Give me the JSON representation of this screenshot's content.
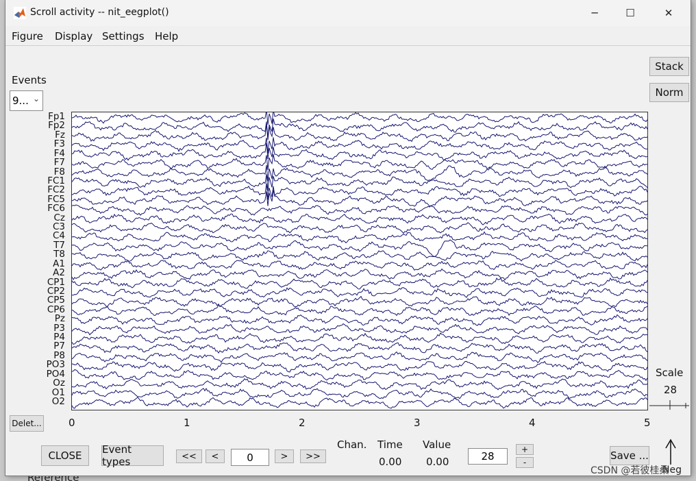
{
  "window": {
    "title": "Scroll activity -- nit_eegplot()",
    "controls": [
      "─",
      "☐",
      "✕"
    ]
  },
  "menu": [
    "Figure",
    "Display",
    "Settings",
    "Help"
  ],
  "events": {
    "label": "Events",
    "selected": "9..."
  },
  "side_buttons": {
    "stack": "Stack",
    "norm": "Norm"
  },
  "channels": [
    "Fp1",
    "Fp2",
    "Fz",
    "F3",
    "F4",
    "F7",
    "F8",
    "FC1",
    "FC2",
    "FC5",
    "FC6",
    "Cz",
    "C3",
    "C4",
    "T7",
    "T8",
    "A1",
    "A2",
    "CP1",
    "CP2",
    "CP5",
    "CP6",
    "Pz",
    "P3",
    "P4",
    "P7",
    "P8",
    "PO3",
    "PO4",
    "Oz",
    "O1",
    "O2"
  ],
  "x_ticks": [
    "0",
    "1",
    "2",
    "3",
    "4",
    "5"
  ],
  "scale": {
    "label": "Scale",
    "value": "28"
  },
  "bottom": {
    "delete": "Delet...",
    "close": "CLOSE",
    "event_types": "Event types",
    "nav_first": "<<",
    "nav_prev": "<",
    "position": "0",
    "nav_next": ">",
    "nav_last": ">>",
    "chan_label": "Chan.",
    "time_label": "Time",
    "time_value": "0.00",
    "value_label": "Value",
    "value_value": "0.00",
    "spacing": "28",
    "plus": "+",
    "minus": "-",
    "save": "Save ..."
  },
  "neg_label": "Neg",
  "background_text": "Reference",
  "watermark": "CSDN @若彼桂桑",
  "colors": {
    "trace": "#14146e",
    "accent": "#0078d4"
  }
}
